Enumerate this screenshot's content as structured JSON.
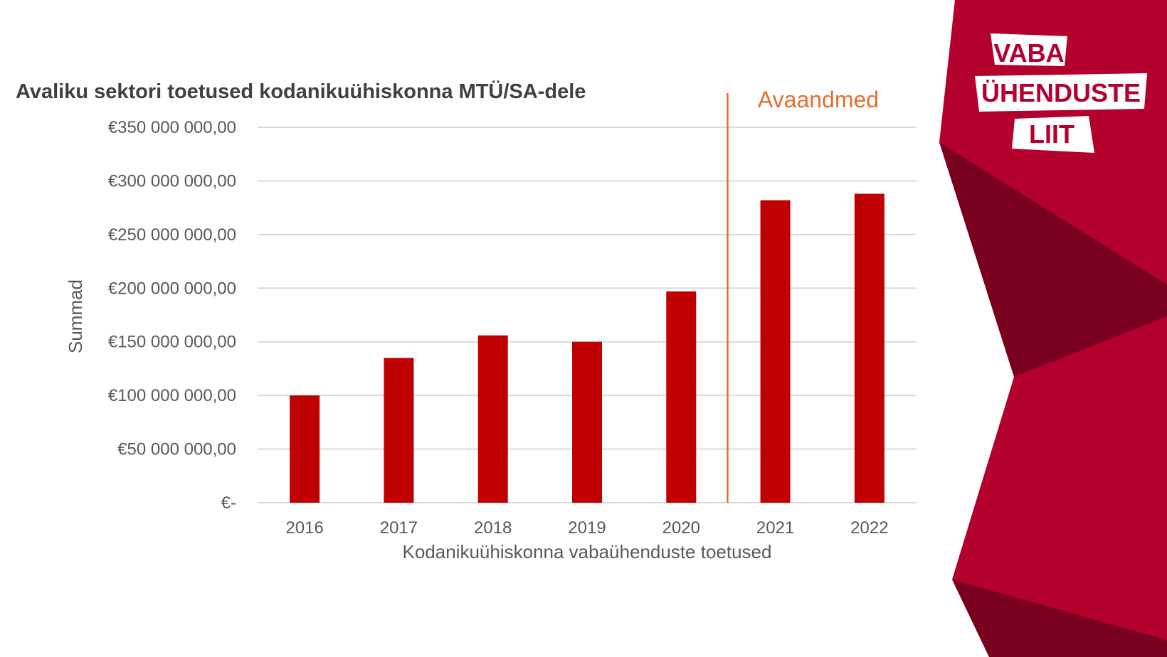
{
  "chart_data": {
    "type": "bar",
    "title": "Avaliku sektori toetused kodanikuühiskonna MTÜ/SA-dele",
    "xlabel": "Kodanikuühiskonna vabaühenduste toetused",
    "ylabel": "Summad",
    "categories": [
      "2016",
      "2017",
      "2018",
      "2019",
      "2020",
      "2021",
      "2022"
    ],
    "values": [
      100000000,
      135000000,
      156000000,
      150000000,
      197000000,
      282000000,
      288000000
    ],
    "ylim": [
      0,
      350000000
    ],
    "yticks": [
      0,
      50000000,
      100000000,
      150000000,
      200000000,
      250000000,
      300000000,
      350000000
    ],
    "ytick_labels": [
      "€-",
      "€50 000 000,00",
      "€100 000 000,00",
      "€150 000 000,00",
      "€200 000 000,00",
      "€250 000 000,00",
      "€300 000 000,00",
      "€350 000 000,00"
    ],
    "grid": true,
    "bar_color": "#c00000",
    "annotation": {
      "text": "Avaandmed",
      "color": "#e07030",
      "description": "vertical divider line between 2020 and 2021"
    }
  },
  "logo": {
    "line1": "VABA",
    "line2": "ÜHENDUSTE",
    "line3": "LIIT"
  },
  "colors": {
    "brand": "#b3002d",
    "brand_dark": "#7a0020",
    "text": "#595959",
    "grid": "#d9d9d9"
  }
}
